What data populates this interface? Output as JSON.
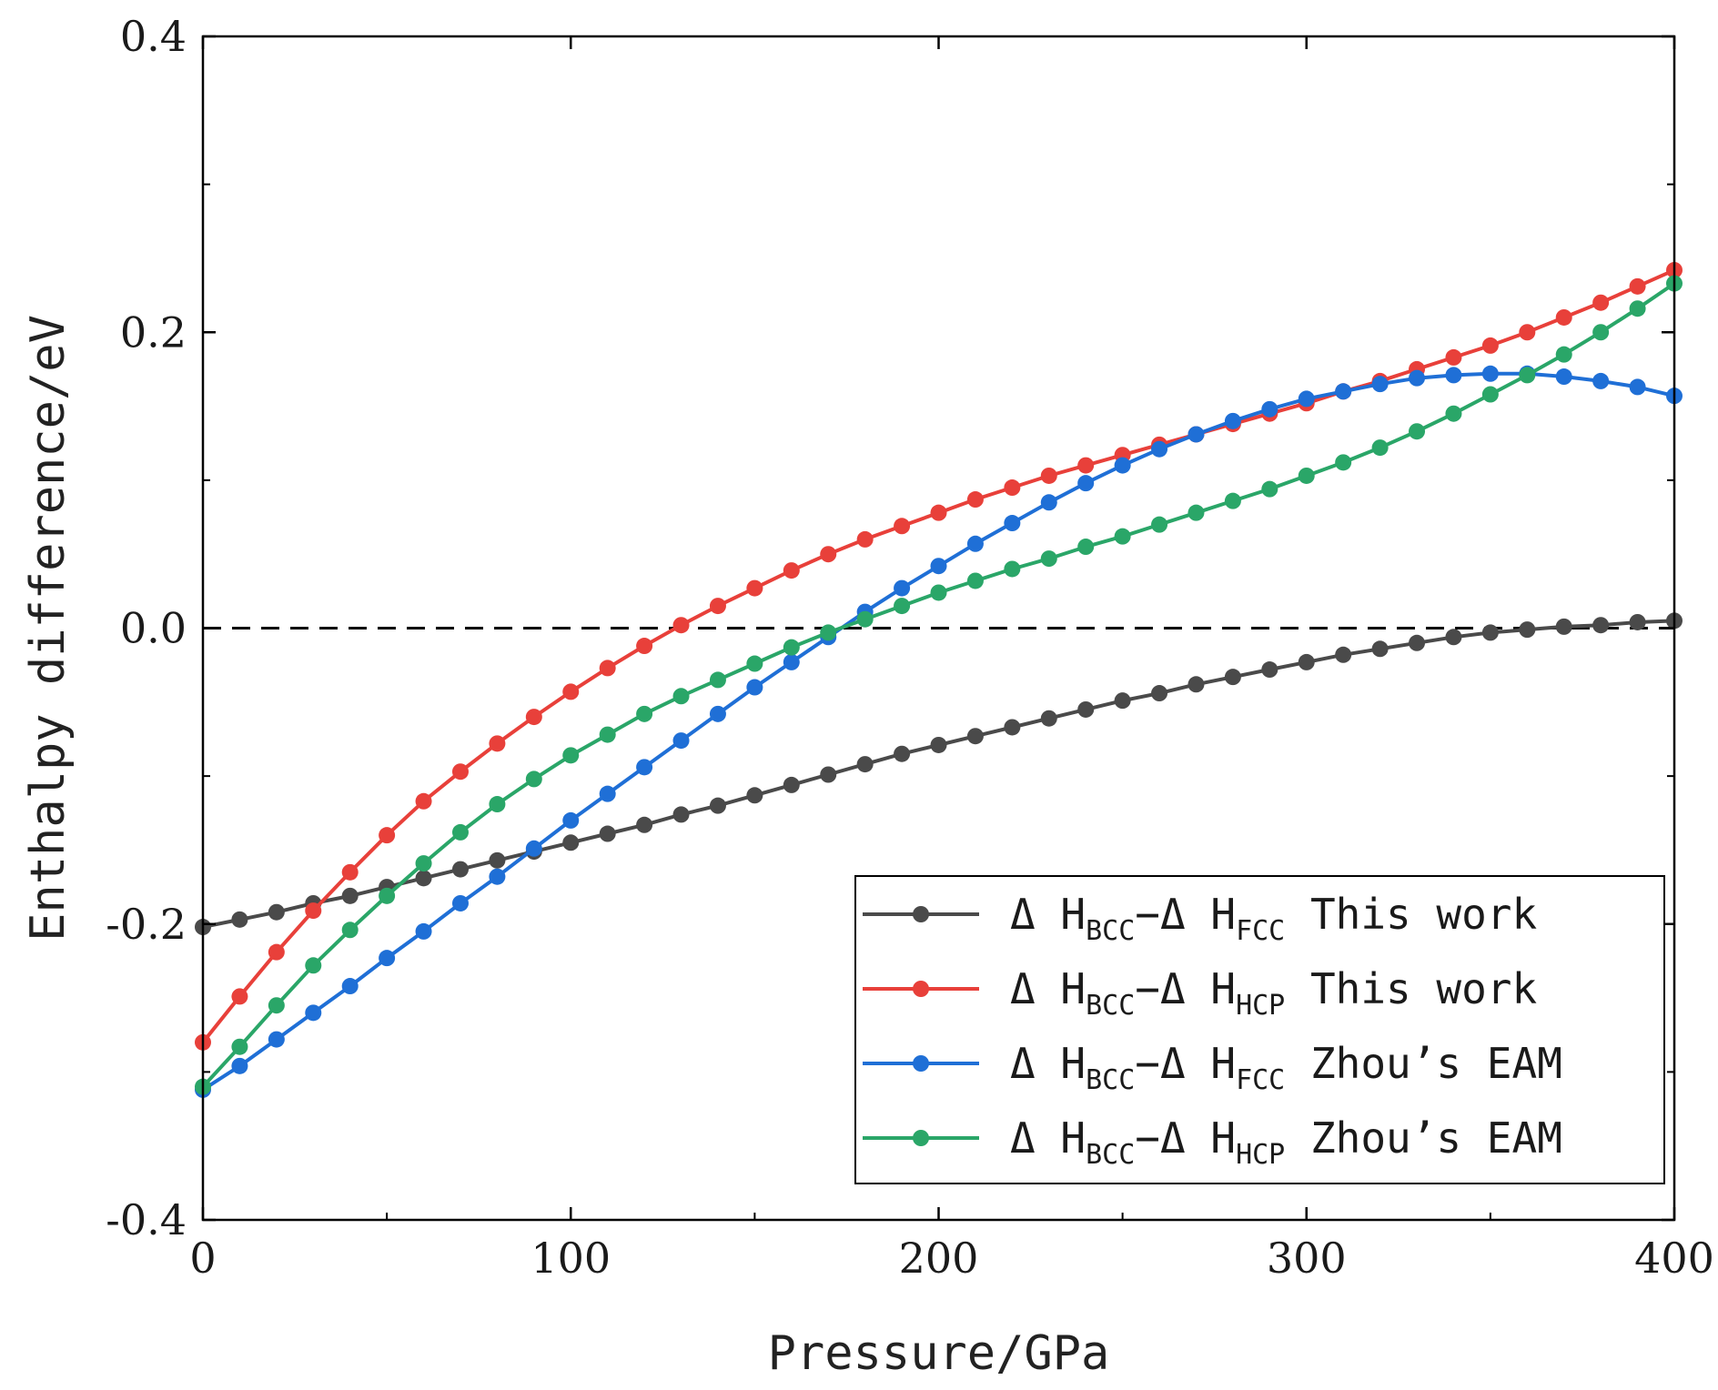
{
  "chart_data": {
    "type": "line",
    "title": "",
    "xlabel": "Pressure/GPa",
    "ylabel": "Enthalpy difference/eV",
    "xlim": [
      0,
      400
    ],
    "ylim": [
      -0.4,
      0.4
    ],
    "x_ticks": [
      0,
      100,
      200,
      300,
      400
    ],
    "x_tick_labels": [
      "0",
      "100",
      "200",
      "300",
      "400"
    ],
    "y_ticks": [
      -0.4,
      -0.2,
      0.0,
      0.2,
      0.4
    ],
    "y_tick_labels": [
      "-0.4",
      "-0.2",
      "0.0",
      "0.2",
      "0.4"
    ],
    "grid": false,
    "legend_position": "bottom-right",
    "reference_line": {
      "y": 0.0,
      "style": "dashed",
      "color": "#000000"
    },
    "x": [
      0,
      10,
      20,
      30,
      40,
      50,
      60,
      70,
      80,
      90,
      100,
      110,
      120,
      130,
      140,
      150,
      160,
      170,
      180,
      190,
      200,
      210,
      220,
      230,
      240,
      250,
      260,
      270,
      280,
      290,
      300,
      310,
      320,
      330,
      340,
      350,
      360,
      370,
      380,
      390,
      400
    ],
    "series": [
      {
        "name": "ΔH_BCC − ΔH_FCC This work",
        "legend": {
          "d1": "Δ",
          "h1": "H",
          "sub1": "BCC",
          "minus": "−",
          "d2": "Δ",
          "h2": "H",
          "sub2": "FCC",
          "suffix": " This work"
        },
        "color": "#4a4a4a",
        "values": [
          -0.202,
          -0.197,
          -0.192,
          -0.186,
          -0.181,
          -0.175,
          -0.169,
          -0.163,
          -0.157,
          -0.151,
          -0.145,
          -0.139,
          -0.133,
          -0.126,
          -0.12,
          -0.113,
          -0.106,
          -0.099,
          -0.092,
          -0.085,
          -0.079,
          -0.073,
          -0.067,
          -0.061,
          -0.055,
          -0.049,
          -0.044,
          -0.038,
          -0.033,
          -0.028,
          -0.023,
          -0.018,
          -0.014,
          -0.01,
          -0.006,
          -0.003,
          -0.001,
          0.001,
          0.002,
          0.004,
          0.005
        ]
      },
      {
        "name": "ΔH_BCC − ΔH_HCP This work",
        "legend": {
          "d1": "Δ",
          "h1": "H",
          "sub1": "BCC",
          "minus": "−",
          "d2": "Δ",
          "h2": "H",
          "sub2": "HCP",
          "suffix": " This work"
        },
        "color": "#e8403a",
        "values": [
          -0.28,
          -0.249,
          -0.219,
          -0.191,
          -0.165,
          -0.14,
          -0.117,
          -0.097,
          -0.078,
          -0.06,
          -0.043,
          -0.027,
          -0.012,
          0.002,
          0.015,
          0.027,
          0.039,
          0.05,
          0.06,
          0.069,
          0.078,
          0.087,
          0.095,
          0.103,
          0.11,
          0.117,
          0.124,
          0.131,
          0.138,
          0.145,
          0.152,
          0.16,
          0.167,
          0.175,
          0.183,
          0.191,
          0.2,
          0.21,
          0.22,
          0.231,
          0.242
        ]
      },
      {
        "name": "ΔH_BCC − ΔH_FCC Zhou's EAM",
        "legend": {
          "d1": "Δ",
          "h1": "H",
          "sub1": "BCC",
          "minus": "−",
          "d2": "Δ",
          "h2": "H",
          "sub2": "FCC",
          "suffix": " Zhou’s EAM"
        },
        "color": "#1f6fd6",
        "values": [
          -0.312,
          -0.296,
          -0.278,
          -0.26,
          -0.242,
          -0.223,
          -0.205,
          -0.186,
          -0.168,
          -0.149,
          -0.13,
          -0.112,
          -0.094,
          -0.076,
          -0.058,
          -0.04,
          -0.023,
          -0.006,
          0.011,
          0.027,
          0.042,
          0.057,
          0.071,
          0.085,
          0.098,
          0.11,
          0.121,
          0.131,
          0.14,
          0.148,
          0.155,
          0.16,
          0.165,
          0.169,
          0.171,
          0.172,
          0.172,
          0.17,
          0.167,
          0.163,
          0.157
        ]
      },
      {
        "name": "ΔH_BCC − ΔH_HCP Zhou's EAM",
        "legend": {
          "d1": "Δ",
          "h1": "H",
          "sub1": "BCC",
          "minus": "−",
          "d2": "Δ",
          "h2": "H",
          "sub2": "HCP",
          "suffix": " Zhou’s EAM"
        },
        "color": "#2aa668",
        "values": [
          -0.31,
          -0.283,
          -0.255,
          -0.228,
          -0.204,
          -0.181,
          -0.159,
          -0.138,
          -0.119,
          -0.102,
          -0.086,
          -0.072,
          -0.058,
          -0.046,
          -0.035,
          -0.024,
          -0.013,
          -0.003,
          0.006,
          0.015,
          0.024,
          0.032,
          0.04,
          0.047,
          0.055,
          0.062,
          0.07,
          0.078,
          0.086,
          0.094,
          0.103,
          0.112,
          0.122,
          0.133,
          0.145,
          0.158,
          0.171,
          0.185,
          0.2,
          0.216,
          0.233
        ]
      }
    ]
  }
}
